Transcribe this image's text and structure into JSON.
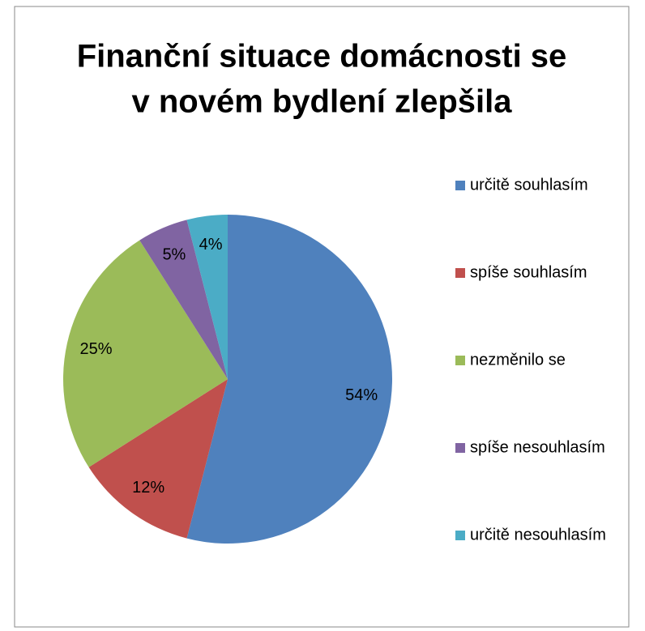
{
  "chart_data": {
    "type": "pie",
    "title": [
      "Finanční situace domácnosti se",
      "v novém bydlení zlepšila"
    ],
    "categories": [
      "určitě souhlasím",
      "spíše souhlasím",
      "nezměnilo se",
      "spíše nesouhlasím",
      "určitě nesouhlasím"
    ],
    "values": [
      54,
      12,
      25,
      5,
      4
    ],
    "value_labels": [
      "54%",
      "12%",
      "25%",
      "5%",
      "4%"
    ],
    "colors": [
      "#4f81bd",
      "#c0504d",
      "#9bbb59",
      "#8064a2",
      "#4bacc6"
    ],
    "legend": "right"
  }
}
